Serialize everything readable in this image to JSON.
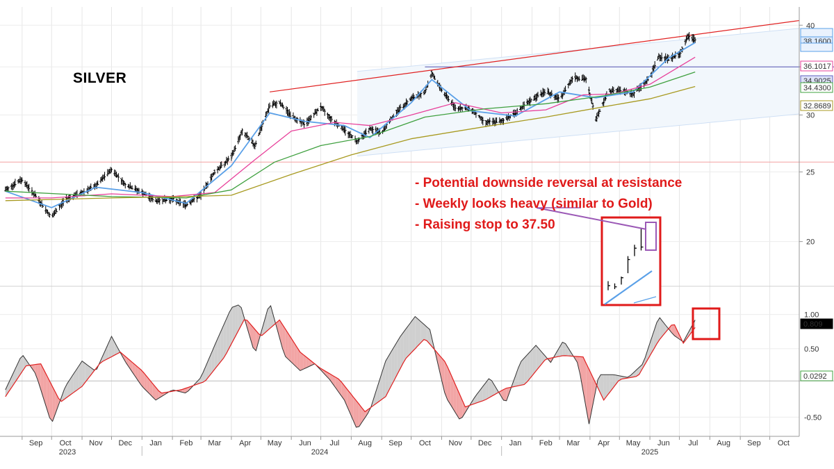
{
  "chart_data": {
    "type": "line",
    "title": "SILVER",
    "annotations": [
      "- Potential downside reversal at resistance",
      "- Weekly looks heavy (similar to Gold)",
      "- Raising stop to 37.50"
    ],
    "x_month_labels": [
      "Sep",
      "Oct",
      "Nov",
      "Dec",
      "Jan",
      "Feb",
      "Mar",
      "Apr",
      "May",
      "Jun",
      "Jul",
      "Aug",
      "Sep",
      "Oct",
      "Nov",
      "Dec",
      "Jan",
      "Feb",
      "Mar",
      "Apr",
      "May",
      "Jun",
      "Jul",
      "Aug",
      "Sep",
      "Oct"
    ],
    "x_year_labels": [
      "2023",
      "2024",
      "2025"
    ],
    "price_panel": {
      "y_ticks": [
        20,
        25,
        30,
        35,
        40
      ],
      "ylim": [
        17.8,
        41.2
      ],
      "log_scale": true,
      "value_labels": [
        "38.1600",
        "36.1017",
        "34.9025",
        "34.4300",
        "32.8689"
      ],
      "value_label_colors": [
        "#5aa0e8",
        "#e8409a",
        "#6060c0",
        "#3fa03f",
        "#a89a20"
      ],
      "horizontal_levels": [
        25.8,
        35.0
      ],
      "series": [
        {
          "key": "close",
          "color": "#000000",
          "dates": [
            "2023-08-15",
            "2023-09-01",
            "2023-09-15",
            "2023-10-01",
            "2023-10-15",
            "2023-11-01",
            "2023-11-15",
            "2023-12-01",
            "2023-12-15",
            "2024-01-01",
            "2024-01-15",
            "2024-02-01",
            "2024-02-15",
            "2024-03-01",
            "2024-03-15",
            "2024-04-01",
            "2024-04-12",
            "2024-04-25",
            "2024-05-10",
            "2024-05-20",
            "2024-06-01",
            "2024-06-15",
            "2024-07-01",
            "2024-07-12",
            "2024-07-25",
            "2024-08-07",
            "2024-08-20",
            "2024-09-01",
            "2024-09-15",
            "2024-10-01",
            "2024-10-15",
            "2024-10-22",
            "2024-11-01",
            "2024-11-15",
            "2024-12-01",
            "2024-12-15",
            "2025-01-01",
            "2025-01-15",
            "2025-02-01",
            "2025-02-15",
            "2025-03-01",
            "2025-03-15",
            "2025-03-28",
            "2025-04-07",
            "2025-04-20",
            "2025-05-01",
            "2025-05-15",
            "2025-06-01",
            "2025-06-10",
            "2025-06-20",
            "2025-07-01",
            "2025-07-10",
            "2025-07-17"
          ],
          "values": [
            23.6,
            24.4,
            23.1,
            21.6,
            22.9,
            23.4,
            23.9,
            25.2,
            24.0,
            23.4,
            22.8,
            22.9,
            22.5,
            23.2,
            25.0,
            26.2,
            28.5,
            27.2,
            30.9,
            31.2,
            29.9,
            29.1,
            30.8,
            29.6,
            28.6,
            27.6,
            28.7,
            28.3,
            30.2,
            31.6,
            32.3,
            34.3,
            32.5,
            30.7,
            30.6,
            29.3,
            29.4,
            30.2,
            31.5,
            32.4,
            31.5,
            33.9,
            33.6,
            29.6,
            32.4,
            32.5,
            32.1,
            33.8,
            36.2,
            35.9,
            36.4,
            38.6,
            38.16
          ]
        },
        {
          "key": "ema_fast",
          "color": "#5aa0e8",
          "dates": [
            "2023-08-15",
            "2023-10-01",
            "2023-11-15",
            "2024-01-01",
            "2024-02-15",
            "2024-04-01",
            "2024-05-10",
            "2024-06-15",
            "2024-07-25",
            "2024-08-20",
            "2024-10-01",
            "2024-10-22",
            "2024-12-01",
            "2025-01-15",
            "2025-03-01",
            "2025-04-07",
            "2025-05-15",
            "2025-06-20",
            "2025-07-17"
          ],
          "values": [
            23.5,
            22.3,
            23.8,
            23.4,
            22.6,
            25.5,
            30.2,
            29.4,
            29.0,
            27.9,
            31.2,
            33.6,
            30.4,
            29.9,
            32.3,
            31.7,
            32.3,
            36.0,
            37.83
          ]
        },
        {
          "key": "sma_mid",
          "color": "#e8409a",
          "dates": [
            "2023-08-15",
            "2023-10-01",
            "2023-12-01",
            "2024-02-01",
            "2024-03-15",
            "2024-04-25",
            "2024-06-01",
            "2024-07-15",
            "2024-08-20",
            "2024-10-01",
            "2024-11-15",
            "2025-01-01",
            "2025-02-15",
            "2025-03-25",
            "2025-04-25",
            "2025-06-01",
            "2025-07-17"
          ],
          "values": [
            23.0,
            23.0,
            23.3,
            23.1,
            23.4,
            26.0,
            28.5,
            29.3,
            29.0,
            30.0,
            31.2,
            30.2,
            30.5,
            32.0,
            32.1,
            33.1,
            36.1017
          ]
        },
        {
          "key": "sma_slow",
          "color": "#3fa03f",
          "dates": [
            "2023-08-15",
            "2023-12-01",
            "2024-02-15",
            "2024-04-01",
            "2024-05-15",
            "2024-07-01",
            "2024-08-20",
            "2024-10-15",
            "2024-12-15",
            "2025-02-15",
            "2025-04-15",
            "2025-06-01",
            "2025-07-17"
          ],
          "values": [
            23.5,
            23.1,
            23.0,
            23.6,
            25.8,
            27.2,
            28.0,
            29.8,
            30.6,
            31.1,
            31.9,
            32.8,
            34.43
          ]
        },
        {
          "key": "sma_long",
          "color": "#a89a20",
          "dates": [
            "2023-08-15",
            "2023-12-01",
            "2024-02-15",
            "2024-04-01",
            "2024-06-01",
            "2024-08-01",
            "2024-10-01",
            "2024-12-15",
            "2025-02-15",
            "2025-04-15",
            "2025-06-01",
            "2025-07-17"
          ],
          "values": [
            22.8,
            23.0,
            23.1,
            23.2,
            24.8,
            26.4,
            27.8,
            28.9,
            29.8,
            30.8,
            31.6,
            32.8689
          ]
        }
      ],
      "resistance_line": {
        "color": "#e02020",
        "dates": [
          "2024-05-10",
          "2025-10-31"
        ],
        "values": [
          32.3,
          40.6
        ]
      },
      "channel": {
        "color": "#cfe0f5",
        "upper": {
          "dates": [
            "2024-08-07",
            "2025-10-31"
          ],
          "values": [
            34.5,
            39.6
          ]
        },
        "lower": {
          "dates": [
            "2024-08-07",
            "2025-10-31"
          ],
          "values": [
            26.3,
            30.1
          ]
        }
      }
    },
    "oscillator_panel": {
      "y_ticks": [
        -0.5,
        0.5,
        1.0
      ],
      "ylim": [
        -0.78,
        1.26
      ],
      "value_labels": [
        "0.809",
        "0.0292"
      ],
      "zero_level": 0.0292,
      "series": [
        {
          "key": "osc",
          "color": "#333333",
          "dates": [
            "2023-08-15",
            "2023-09-01",
            "2023-09-15",
            "2023-10-01",
            "2023-10-15",
            "2023-11-01",
            "2023-11-15",
            "2023-12-01",
            "2023-12-15",
            "2024-01-01",
            "2024-01-15",
            "2024-02-01",
            "2024-02-15",
            "2024-03-01",
            "2024-03-15",
            "2024-04-01",
            "2024-04-10",
            "2024-04-25",
            "2024-05-10",
            "2024-05-25",
            "2024-06-10",
            "2024-06-25",
            "2024-07-10",
            "2024-07-25",
            "2024-08-07",
            "2024-08-20",
            "2024-09-05",
            "2024-09-20",
            "2024-10-05",
            "2024-10-20",
            "2024-11-05",
            "2024-11-20",
            "2024-12-05",
            "2024-12-20",
            "2025-01-05",
            "2025-01-20",
            "2025-02-05",
            "2025-02-20",
            "2025-03-05",
            "2025-03-20",
            "2025-03-31",
            "2025-04-10",
            "2025-04-25",
            "2025-05-10",
            "2025-05-25",
            "2025-06-10",
            "2025-06-25",
            "2025-07-05",
            "2025-07-17"
          ],
          "values": [
            -0.1,
            0.42,
            0.13,
            -0.6,
            -0.05,
            0.32,
            0.17,
            0.68,
            0.31,
            -0.05,
            -0.25,
            -0.1,
            -0.15,
            0.08,
            0.55,
            1.1,
            1.15,
            0.42,
            1.18,
            0.4,
            0.18,
            0.28,
            0.05,
            -0.25,
            -0.68,
            -0.4,
            0.32,
            0.68,
            0.97,
            0.78,
            -0.2,
            -0.55,
            -0.2,
            0.08,
            -0.3,
            0.3,
            0.55,
            0.3,
            0.62,
            0.28,
            -0.6,
            0.12,
            0.12,
            0.08,
            0.28,
            0.97,
            0.7,
            0.6,
            0.92
          ]
        },
        {
          "key": "signal",
          "color": "#e02020",
          "dates": [
            "2023-08-15",
            "2023-09-05",
            "2023-09-20",
            "2023-10-10",
            "2023-11-01",
            "2023-11-20",
            "2023-12-10",
            "2024-01-01",
            "2024-01-20",
            "2024-02-10",
            "2024-03-05",
            "2024-03-25",
            "2024-04-15",
            "2024-05-01",
            "2024-05-20",
            "2024-06-10",
            "2024-06-30",
            "2024-07-20",
            "2024-08-15",
            "2024-09-05",
            "2024-09-25",
            "2024-10-15",
            "2024-11-05",
            "2024-11-25",
            "2024-12-15",
            "2025-01-05",
            "2025-01-25",
            "2025-02-15",
            "2025-03-05",
            "2025-03-25",
            "2025-04-15",
            "2025-05-01",
            "2025-05-20",
            "2025-06-10",
            "2025-06-25",
            "2025-07-05",
            "2025-07-17"
          ],
          "values": [
            -0.2,
            0.25,
            0.28,
            -0.28,
            -0.05,
            0.3,
            0.45,
            0.18,
            -0.15,
            -0.1,
            0.02,
            0.38,
            0.95,
            0.68,
            0.92,
            0.45,
            0.22,
            0.05,
            -0.42,
            -0.2,
            0.35,
            0.65,
            0.3,
            -0.35,
            -0.25,
            -0.08,
            -0.02,
            0.35,
            0.4,
            0.38,
            -0.25,
            0.05,
            0.1,
            0.62,
            0.88,
            0.58,
            0.809
          ]
        }
      ]
    },
    "inset": {
      "bars": [
        [
          17.8,
          18.6,
          18.2
        ],
        [
          17.9,
          18.4,
          18.1
        ],
        [
          18.3,
          19.0,
          18.9
        ],
        [
          19.3,
          20.8,
          20.5
        ],
        [
          20.8,
          21.8,
          21.5
        ],
        [
          21.3,
          23.3,
          21.6
        ]
      ],
      "line": [
        17.0,
        19.2
      ]
    }
  }
}
